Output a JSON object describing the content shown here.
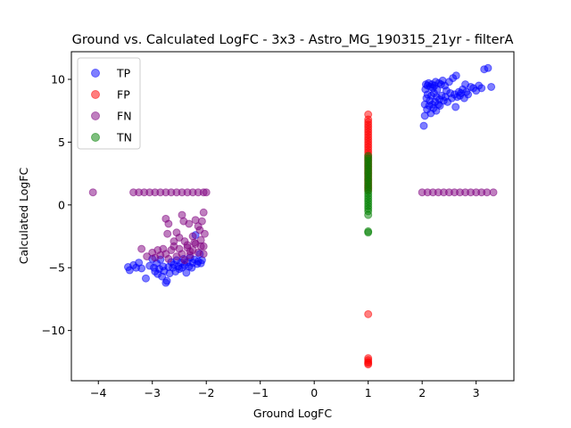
{
  "chart_data": {
    "type": "scatter",
    "title": "Ground vs. Calculated LogFC - 3x3 - Astro_MG_190315_21yr - filterA",
    "xlabel": "Ground LogFC",
    "ylabel": "Calculated LogFC",
    "xlim": [
      -4.5,
      3.7
    ],
    "ylim": [
      -14,
      12.2
    ],
    "xticks": [
      -4,
      -3,
      -2,
      -1,
      0,
      1,
      2,
      3
    ],
    "yticks": [
      -10,
      -5,
      0,
      5,
      10
    ],
    "grid": false,
    "legend_position": "top-left",
    "series": [
      {
        "name": "TP",
        "color": "#0000ff",
        "points": [
          [
            -3.45,
            -4.95
          ],
          [
            -3.42,
            -5.2
          ],
          [
            -3.35,
            -4.8
          ],
          [
            -3.3,
            -5.0
          ],
          [
            -3.25,
            -4.6
          ],
          [
            -3.2,
            -5.05
          ],
          [
            -3.12,
            -5.85
          ],
          [
            -3.05,
            -4.85
          ],
          [
            -3.0,
            -4.3
          ],
          [
            -2.97,
            -5.0
          ],
          [
            -2.95,
            -5.3
          ],
          [
            -2.92,
            -4.65
          ],
          [
            -2.9,
            -5.5
          ],
          [
            -2.87,
            -5.1
          ],
          [
            -2.85,
            -4.35
          ],
          [
            -2.82,
            -5.7
          ],
          [
            -2.8,
            -4.9
          ],
          [
            -2.78,
            -5.25
          ],
          [
            -2.75,
            -6.2
          ],
          [
            -2.73,
            -6.05
          ],
          [
            -2.7,
            -4.95
          ],
          [
            -2.68,
            -5.45
          ],
          [
            -2.65,
            -4.55
          ],
          [
            -2.62,
            -5.0
          ],
          [
            -2.6,
            -4.75
          ],
          [
            -2.57,
            -5.3
          ],
          [
            -2.55,
            -4.4
          ],
          [
            -2.52,
            -4.9
          ],
          [
            -2.5,
            -5.1
          ],
          [
            -2.47,
            -4.6
          ],
          [
            -2.45,
            -5.0
          ],
          [
            -2.42,
            -4.3
          ],
          [
            -2.4,
            -4.8
          ],
          [
            -2.37,
            -5.4
          ],
          [
            -2.35,
            -4.55
          ],
          [
            -2.32,
            -4.9
          ],
          [
            -2.3,
            -4.2
          ],
          [
            -2.27,
            -5.0
          ],
          [
            -2.25,
            -4.6
          ],
          [
            -2.22,
            -4.35
          ],
          [
            -2.2,
            -2.4
          ],
          [
            -2.17,
            -4.7
          ],
          [
            -2.15,
            -4.5
          ],
          [
            -2.12,
            -3.9
          ],
          [
            -2.1,
            -4.65
          ],
          [
            -2.08,
            -4.4
          ],
          [
            2.03,
            6.3
          ],
          [
            2.05,
            7.1
          ],
          [
            2.05,
            8.0
          ],
          [
            2.06,
            9.2
          ],
          [
            2.07,
            9.6
          ],
          [
            2.08,
            8.5
          ],
          [
            2.09,
            7.6
          ],
          [
            2.1,
            9.5
          ],
          [
            2.1,
            8.8
          ],
          [
            2.12,
            9.7
          ],
          [
            2.13,
            7.9
          ],
          [
            2.14,
            8.3
          ],
          [
            2.15,
            9.4
          ],
          [
            2.16,
            7.3
          ],
          [
            2.17,
            8.7
          ],
          [
            2.18,
            9.6
          ],
          [
            2.19,
            8.0
          ],
          [
            2.2,
            9.3
          ],
          [
            2.21,
            7.7
          ],
          [
            2.22,
            8.9
          ],
          [
            2.23,
            9.5
          ],
          [
            2.24,
            8.2
          ],
          [
            2.25,
            9.8
          ],
          [
            2.26,
            7.5
          ],
          [
            2.27,
            8.6
          ],
          [
            2.28,
            9.2
          ],
          [
            2.3,
            8.0
          ],
          [
            2.31,
            9.7
          ],
          [
            2.32,
            8.4
          ],
          [
            2.33,
            7.9
          ],
          [
            2.35,
            9.6
          ],
          [
            2.36,
            8.7
          ],
          [
            2.38,
            9.9
          ],
          [
            2.4,
            8.3
          ],
          [
            2.42,
            9.5
          ],
          [
            2.43,
            8.6
          ],
          [
            2.45,
            9.1
          ],
          [
            2.47,
            8.2
          ],
          [
            2.5,
            9.8
          ],
          [
            2.52,
            8.9
          ],
          [
            2.55,
            8.5
          ],
          [
            2.57,
            10.1
          ],
          [
            2.6,
            8.8
          ],
          [
            2.62,
            7.8
          ],
          [
            2.63,
            10.3
          ],
          [
            2.65,
            8.6
          ],
          [
            2.68,
            9.0
          ],
          [
            2.7,
            8.7
          ],
          [
            2.72,
            8.9
          ],
          [
            2.75,
            9.2
          ],
          [
            2.78,
            8.5
          ],
          [
            2.8,
            9.6
          ],
          [
            2.82,
            9.0
          ],
          [
            2.85,
            8.8
          ],
          [
            2.9,
            9.4
          ],
          [
            2.95,
            9.3
          ],
          [
            3.0,
            9.1
          ],
          [
            3.05,
            9.5
          ],
          [
            3.1,
            9.3
          ],
          [
            3.15,
            10.8
          ],
          [
            3.22,
            10.9
          ],
          [
            3.28,
            9.4
          ]
        ]
      },
      {
        "name": "FP",
        "color": "#ff0000",
        "points": [
          [
            1.0,
            7.2
          ],
          [
            1.0,
            6.8
          ],
          [
            1.0,
            6.6
          ],
          [
            1.0,
            6.4
          ],
          [
            1.0,
            6.2
          ],
          [
            1.0,
            6.0
          ],
          [
            1.0,
            5.8
          ],
          [
            1.0,
            5.6
          ],
          [
            1.0,
            5.4
          ],
          [
            1.0,
            5.2
          ],
          [
            1.0,
            5.0
          ],
          [
            1.0,
            4.8
          ],
          [
            1.0,
            4.6
          ],
          [
            1.0,
            4.4
          ],
          [
            1.0,
            4.2
          ],
          [
            1.0,
            4.0
          ],
          [
            1.0,
            3.8
          ],
          [
            1.0,
            3.6
          ],
          [
            1.0,
            3.4
          ],
          [
            1.0,
            3.2
          ],
          [
            1.0,
            3.0
          ],
          [
            1.0,
            2.8
          ],
          [
            1.0,
            2.6
          ],
          [
            1.0,
            2.4
          ],
          [
            1.0,
            2.2
          ],
          [
            1.0,
            2.0
          ],
          [
            1.0,
            1.8
          ],
          [
            1.0,
            1.6
          ],
          [
            1.0,
            1.4
          ],
          [
            1.0,
            1.2
          ],
          [
            1.0,
            -8.7
          ],
          [
            1.0,
            -12.2
          ],
          [
            1.0,
            -12.35
          ],
          [
            1.0,
            -12.5
          ],
          [
            1.0,
            -12.6
          ],
          [
            1.0,
            -12.7
          ]
        ]
      },
      {
        "name": "FN",
        "color": "#800080",
        "points": [
          [
            -4.1,
            1.0
          ],
          [
            -3.35,
            1.0
          ],
          [
            -3.25,
            1.0
          ],
          [
            -3.15,
            1.0
          ],
          [
            -3.05,
            1.0
          ],
          [
            -2.95,
            1.0
          ],
          [
            -2.85,
            1.0
          ],
          [
            -2.75,
            1.0
          ],
          [
            -2.65,
            1.0
          ],
          [
            -2.55,
            1.0
          ],
          [
            -2.45,
            1.0
          ],
          [
            -2.35,
            1.0
          ],
          [
            -2.25,
            1.0
          ],
          [
            -2.15,
            1.0
          ],
          [
            -2.05,
            1.0
          ],
          [
            -2.0,
            1.0
          ],
          [
            -2.75,
            -1.1
          ],
          [
            -2.7,
            -1.5
          ],
          [
            -2.72,
            -2.3
          ],
          [
            -2.6,
            -2.9
          ],
          [
            -2.55,
            -2.2
          ],
          [
            -2.5,
            -2.6
          ],
          [
            -2.45,
            -0.8
          ],
          [
            -2.42,
            -1.3
          ],
          [
            -2.4,
            -2.9
          ],
          [
            -2.35,
            -3.2
          ],
          [
            -2.32,
            -1.5
          ],
          [
            -2.3,
            -3.7
          ],
          [
            -2.25,
            -2.5
          ],
          [
            -2.22,
            -3.0
          ],
          [
            -2.2,
            -1.2
          ],
          [
            -2.15,
            -1.7
          ],
          [
            -2.12,
            -2.0
          ],
          [
            -2.1,
            -2.8
          ],
          [
            -2.08,
            -1.3
          ],
          [
            -2.05,
            -3.3
          ],
          [
            -2.05,
            -0.6
          ],
          [
            -2.03,
            -2.3
          ],
          [
            -3.2,
            -3.5
          ],
          [
            -3.1,
            -4.1
          ],
          [
            -3.0,
            -3.8
          ],
          [
            -2.95,
            -4.2
          ],
          [
            -2.9,
            -3.6
          ],
          [
            -2.85,
            -4.0
          ],
          [
            -2.8,
            -3.5
          ],
          [
            -2.75,
            -3.9
          ],
          [
            -2.7,
            -4.3
          ],
          [
            -2.65,
            -3.6
          ],
          [
            -2.6,
            -3.3
          ],
          [
            -2.55,
            -4.1
          ],
          [
            -2.5,
            -3.5
          ],
          [
            -2.45,
            -3.9
          ],
          [
            -2.4,
            -4.4
          ],
          [
            -2.35,
            -3.4
          ],
          [
            -2.3,
            -4.0
          ],
          [
            -2.25,
            -3.6
          ],
          [
            -2.2,
            -3.1
          ],
          [
            -2.15,
            -3.8
          ],
          [
            -2.1,
            -3.3
          ],
          [
            -2.05,
            -3.9
          ],
          [
            2.0,
            1.0
          ],
          [
            2.1,
            1.0
          ],
          [
            2.2,
            1.0
          ],
          [
            2.3,
            1.0
          ],
          [
            2.4,
            1.0
          ],
          [
            2.5,
            1.0
          ],
          [
            2.6,
            1.0
          ],
          [
            2.7,
            1.0
          ],
          [
            2.8,
            1.0
          ],
          [
            2.9,
            1.0
          ],
          [
            3.0,
            1.0
          ],
          [
            3.1,
            1.0
          ],
          [
            3.2,
            1.0
          ],
          [
            3.32,
            1.0
          ]
        ]
      },
      {
        "name": "TN",
        "color": "#008000",
        "points": [
          [
            1.0,
            3.9
          ],
          [
            1.0,
            3.7
          ],
          [
            1.0,
            3.5
          ],
          [
            1.0,
            3.3
          ],
          [
            1.0,
            3.1
          ],
          [
            1.0,
            2.9
          ],
          [
            1.0,
            2.7
          ],
          [
            1.0,
            2.5
          ],
          [
            1.0,
            2.3
          ],
          [
            1.0,
            2.1
          ],
          [
            1.0,
            1.9
          ],
          [
            1.0,
            1.7
          ],
          [
            1.0,
            1.5
          ],
          [
            1.0,
            1.3
          ],
          [
            1.0,
            1.1
          ],
          [
            1.0,
            0.9
          ],
          [
            1.0,
            0.7
          ],
          [
            1.0,
            0.5
          ],
          [
            1.0,
            0.3
          ],
          [
            1.0,
            0.1
          ],
          [
            1.0,
            -0.1
          ],
          [
            1.0,
            -0.3
          ],
          [
            1.0,
            -0.5
          ],
          [
            1.0,
            -0.8
          ],
          [
            1.0,
            -2.1
          ],
          [
            1.0,
            -2.2
          ]
        ]
      }
    ]
  }
}
